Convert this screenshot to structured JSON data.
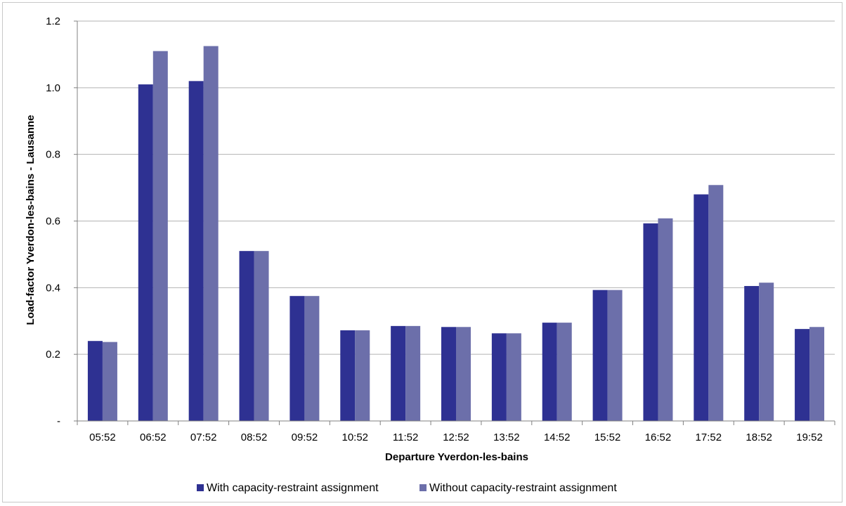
{
  "chart_data": {
    "type": "bar",
    "title": "",
    "xlabel": "Departure Yverdon-les-bains",
    "ylabel": "Load-factor Yverdon-les-bains - Lausanne",
    "ylim": [
      0,
      1.2
    ],
    "yticks": [
      {
        "value": 0,
        "label": "-"
      },
      {
        "value": 0.2,
        "label": "0.2"
      },
      {
        "value": 0.4,
        "label": "0.4"
      },
      {
        "value": 0.6,
        "label": "0.6"
      },
      {
        "value": 0.8,
        "label": "0.8"
      },
      {
        "value": 1.0,
        "label": "1.0"
      },
      {
        "value": 1.2,
        "label": "1.2"
      }
    ],
    "grid": true,
    "legend_position": "bottom",
    "categories": [
      "05:52",
      "06:52",
      "07:52",
      "08:52",
      "09:52",
      "10:52",
      "11:52",
      "12:52",
      "13:52",
      "14:52",
      "15:52",
      "16:52",
      "17:52",
      "18:52",
      "19:52"
    ],
    "series": [
      {
        "name": "With capacity-restraint assignment",
        "color": "#2e3192",
        "values": [
          0.24,
          1.01,
          1.02,
          0.51,
          0.375,
          0.272,
          0.285,
          0.282,
          0.263,
          0.295,
          0.393,
          0.593,
          0.68,
          0.405,
          0.276
        ]
      },
      {
        "name": "Without capacity-restraint assignment",
        "color": "#6c6faa",
        "values": [
          0.237,
          1.11,
          1.125,
          0.51,
          0.375,
          0.272,
          0.285,
          0.282,
          0.263,
          0.295,
          0.393,
          0.608,
          0.708,
          0.415,
          0.282
        ]
      }
    ]
  }
}
